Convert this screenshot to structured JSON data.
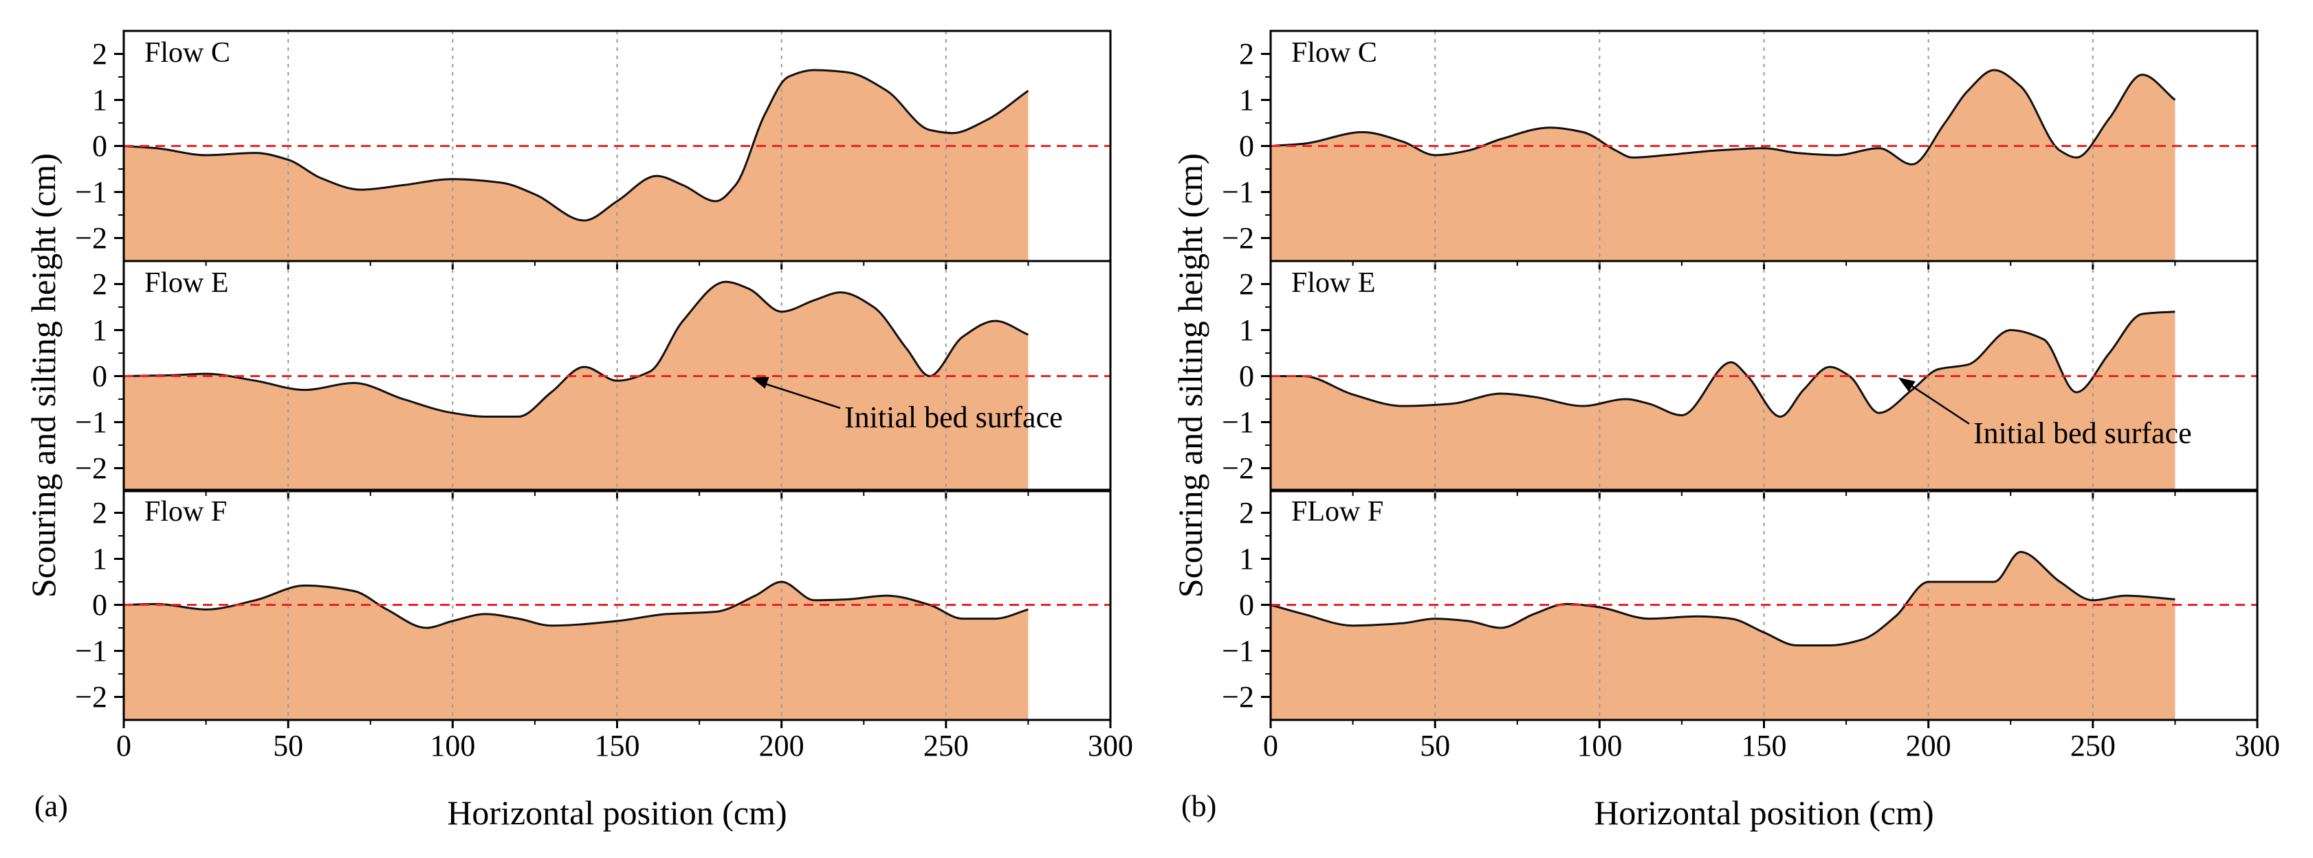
{
  "figure": {
    "charts": [
      {
        "id": "a",
        "panel_label": "(a)",
        "ylabel": "Scouring and silting height (cm)",
        "xlabel": "Horizontal position (cm)"
      },
      {
        "id": "b",
        "panel_label": "(b)",
        "ylabel": "Scouring and silting height (cm)",
        "xlabel": "Horizontal position (cm)"
      }
    ]
  },
  "colors": {
    "fill": "#f0b185",
    "curve": "#111111",
    "reference": "#ee2222",
    "grid": "#9a9a9a",
    "axis": "#000000"
  },
  "chart_data": [
    {
      "type": "area",
      "panel": "(a)",
      "xlabel": "Horizontal position (cm)",
      "ylabel": "Scouring and silting height (cm)",
      "xlim": [
        0,
        300
      ],
      "xticks": [
        0,
        50,
        100,
        150,
        200,
        250,
        300
      ],
      "ylim": [
        -2.5,
        2.5
      ],
      "yticks": [
        -2,
        -1,
        0,
        1,
        2
      ],
      "vertical_grid_x": [
        50,
        100,
        150,
        200,
        250
      ],
      "reference_line": {
        "y": 0,
        "style": "dashed"
      },
      "annotation": {
        "text": "Initial bed surface",
        "subplot": 1,
        "arrow_to": [
          190,
          0
        ]
      },
      "subplots": [
        {
          "label": "Flow C",
          "x": [
            0,
            10,
            25,
            40,
            50,
            60,
            72,
            85,
            100,
            115,
            125,
            140,
            150,
            162,
            170,
            180,
            186,
            195,
            202,
            210,
            220,
            232,
            245,
            252,
            262,
            275
          ],
          "y": [
            0,
            -0.05,
            -0.2,
            -0.15,
            -0.3,
            -0.7,
            -0.95,
            -0.85,
            -0.72,
            -0.8,
            -1.05,
            -1.62,
            -1.2,
            -0.65,
            -0.85,
            -1.2,
            -0.85,
            0.7,
            1.5,
            1.65,
            1.6,
            1.2,
            0.35,
            0.28,
            0.55,
            1.2
          ]
        },
        {
          "label": "Flow E",
          "x": [
            0,
            15,
            25,
            40,
            55,
            70,
            85,
            100,
            110,
            120,
            130,
            140,
            150,
            160,
            170,
            183,
            190,
            200,
            210,
            218,
            228,
            238,
            245,
            255,
            265,
            275
          ],
          "y": [
            0,
            0.02,
            0.05,
            -0.1,
            -0.3,
            -0.15,
            -0.5,
            -0.8,
            -0.88,
            -0.88,
            -0.35,
            0.2,
            -0.1,
            0.1,
            1.2,
            2.05,
            1.9,
            1.4,
            1.65,
            1.82,
            1.5,
            0.6,
            0.0,
            0.85,
            1.2,
            0.9
          ]
        },
        {
          "label": "Flow F",
          "x": [
            0,
            10,
            25,
            40,
            55,
            70,
            80,
            92,
            100,
            110,
            120,
            130,
            150,
            165,
            180,
            192,
            200,
            210,
            220,
            232,
            245,
            255,
            265,
            275
          ],
          "y": [
            0,
            0.02,
            -0.1,
            0.1,
            0.42,
            0.3,
            -0.1,
            -0.5,
            -0.35,
            -0.2,
            -0.3,
            -0.45,
            -0.35,
            -0.2,
            -0.15,
            0.2,
            0.5,
            0.1,
            0.12,
            0.2,
            0.0,
            -0.3,
            -0.3,
            -0.1
          ]
        }
      ]
    },
    {
      "type": "area",
      "panel": "(b)",
      "xlabel": "Horizontal position (cm)",
      "ylabel": "Scouring and silting height (cm)",
      "xlim": [
        0,
        300
      ],
      "xticks": [
        0,
        50,
        100,
        150,
        200,
        250,
        300
      ],
      "ylim": [
        -2.5,
        2.5
      ],
      "yticks": [
        -2,
        -1,
        0,
        1,
        2
      ],
      "vertical_grid_x": [
        50,
        100,
        150,
        200,
        250
      ],
      "reference_line": {
        "y": 0,
        "style": "dashed"
      },
      "annotation": {
        "text": "Initial bed surface",
        "subplot": 1,
        "arrow_to": [
          190,
          0
        ]
      },
      "subplots": [
        {
          "label": "Flow C",
          "x": [
            0,
            10,
            28,
            40,
            50,
            60,
            70,
            85,
            95,
            105,
            110,
            120,
            135,
            150,
            160,
            172,
            185,
            195,
            205,
            212,
            220,
            228,
            240,
            245,
            255,
            265,
            275
          ],
          "y": [
            0,
            0.05,
            0.3,
            0.1,
            -0.2,
            -0.1,
            0.15,
            0.4,
            0.3,
            -0.1,
            -0.25,
            -0.2,
            -0.1,
            -0.05,
            -0.15,
            -0.2,
            -0.05,
            -0.4,
            0.5,
            1.2,
            1.65,
            1.3,
            -0.1,
            -0.25,
            0.6,
            1.55,
            1.0
          ]
        },
        {
          "label": "Flow E",
          "x": [
            0,
            10,
            25,
            40,
            55,
            70,
            80,
            95,
            108,
            115,
            125,
            140,
            145,
            155,
            162,
            170,
            176,
            185,
            195,
            203,
            212,
            225,
            235,
            245,
            255,
            265,
            275
          ],
          "y": [
            0,
            0.0,
            -0.4,
            -0.65,
            -0.6,
            -0.38,
            -0.45,
            -0.65,
            -0.5,
            -0.6,
            -0.85,
            0.3,
            0.0,
            -0.88,
            -0.3,
            0.2,
            0.0,
            -0.8,
            -0.3,
            0.15,
            0.25,
            1.0,
            0.8,
            -0.35,
            0.5,
            1.35,
            1.4
          ]
        },
        {
          "label": "FLow F",
          "x": [
            0,
            10,
            25,
            40,
            50,
            60,
            70,
            80,
            90,
            100,
            115,
            130,
            140,
            150,
            160,
            170,
            180,
            190,
            200,
            210,
            220,
            228,
            240,
            250,
            260,
            275
          ],
          "y": [
            0,
            -0.2,
            -0.45,
            -0.4,
            -0.3,
            -0.35,
            -0.5,
            -0.2,
            0.02,
            -0.05,
            -0.3,
            -0.25,
            -0.3,
            -0.6,
            -0.88,
            -0.88,
            -0.75,
            -0.25,
            0.5,
            0.5,
            0.5,
            1.15,
            0.5,
            0.1,
            0.2,
            0.12
          ]
        }
      ]
    }
  ]
}
